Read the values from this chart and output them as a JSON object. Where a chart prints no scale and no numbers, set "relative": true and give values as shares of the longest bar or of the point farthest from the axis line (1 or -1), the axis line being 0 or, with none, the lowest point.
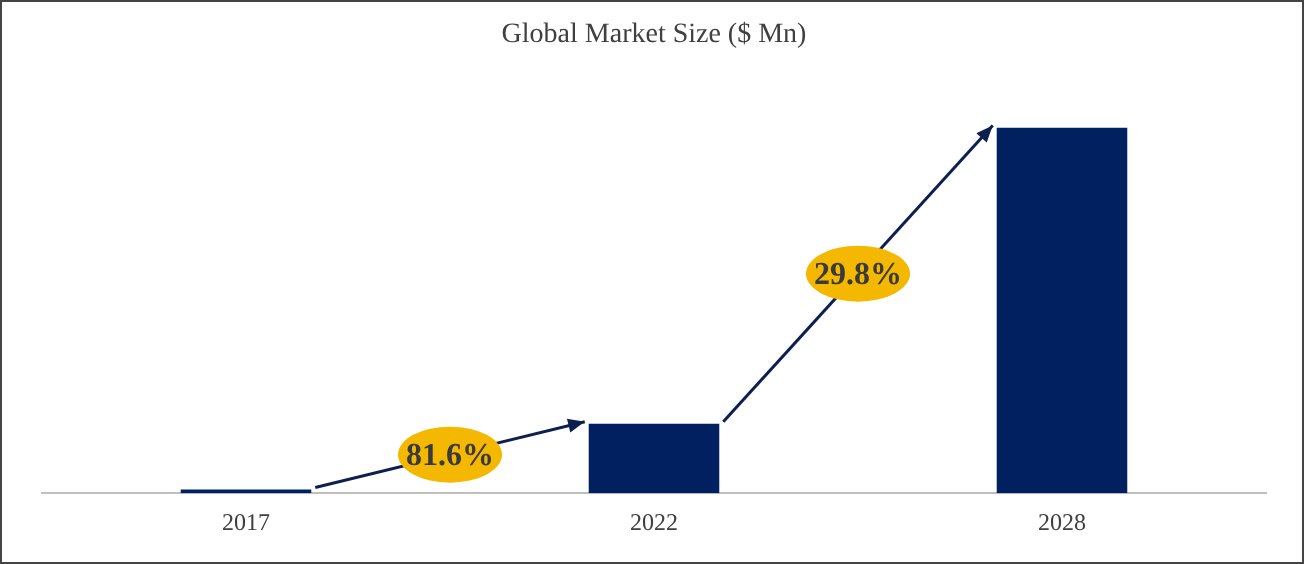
{
  "chart_data": {
    "type": "bar",
    "title": "Global Market Size ($ Mn)",
    "categories": [
      "2017",
      "2022",
      "2028"
    ],
    "values": [
      0.01,
      0.19,
      1
    ],
    "color": "#002060",
    "relative": true,
    "legend": false,
    "grid": false,
    "annotations": [
      "81.6%",
      "29.8%"
    ]
  }
}
